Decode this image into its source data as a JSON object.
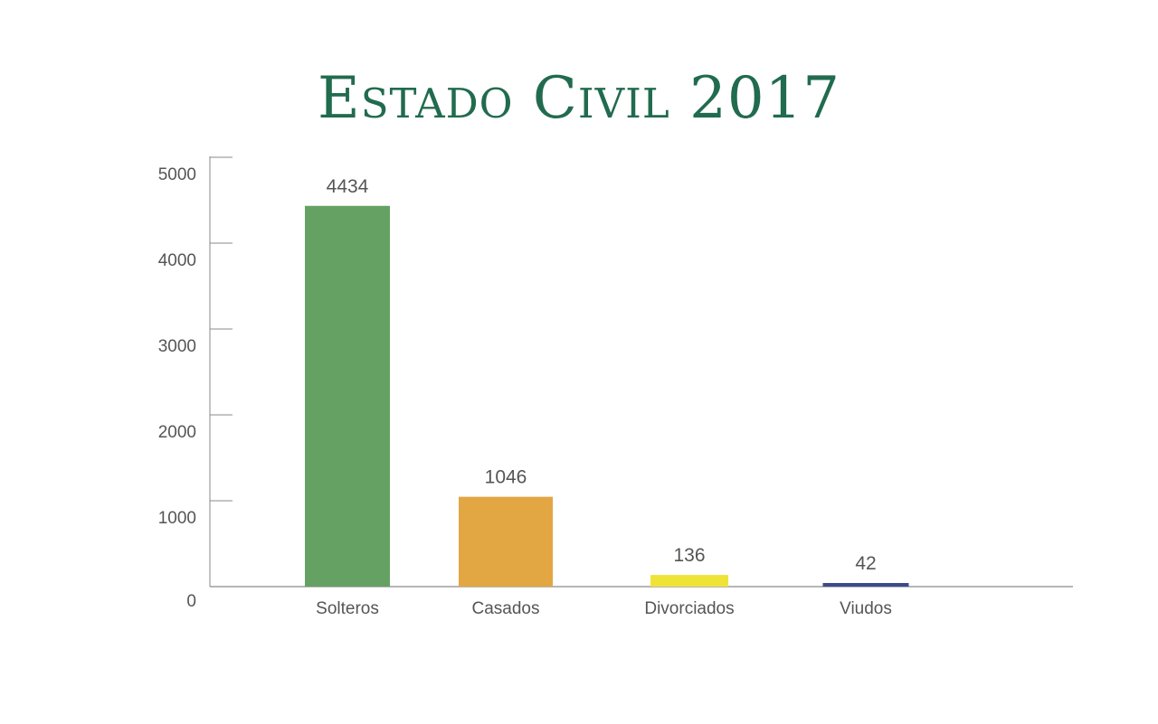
{
  "chart_data": {
    "type": "bar",
    "title": "Estado Civil 2017",
    "categories": [
      "Solteros",
      "Casados",
      "Divorciados",
      "Viudos"
    ],
    "values": [
      4434,
      1046,
      136,
      42
    ],
    "colors": [
      "#65a163",
      "#e2a643",
      "#f0e338",
      "#3b4a8a"
    ],
    "ylim": [
      0,
      5000
    ],
    "yticks": [
      0,
      1000,
      2000,
      3000,
      4000,
      5000
    ],
    "xlabel": "",
    "ylabel": "",
    "grid": false,
    "axis_color": "#8a8a8a"
  }
}
